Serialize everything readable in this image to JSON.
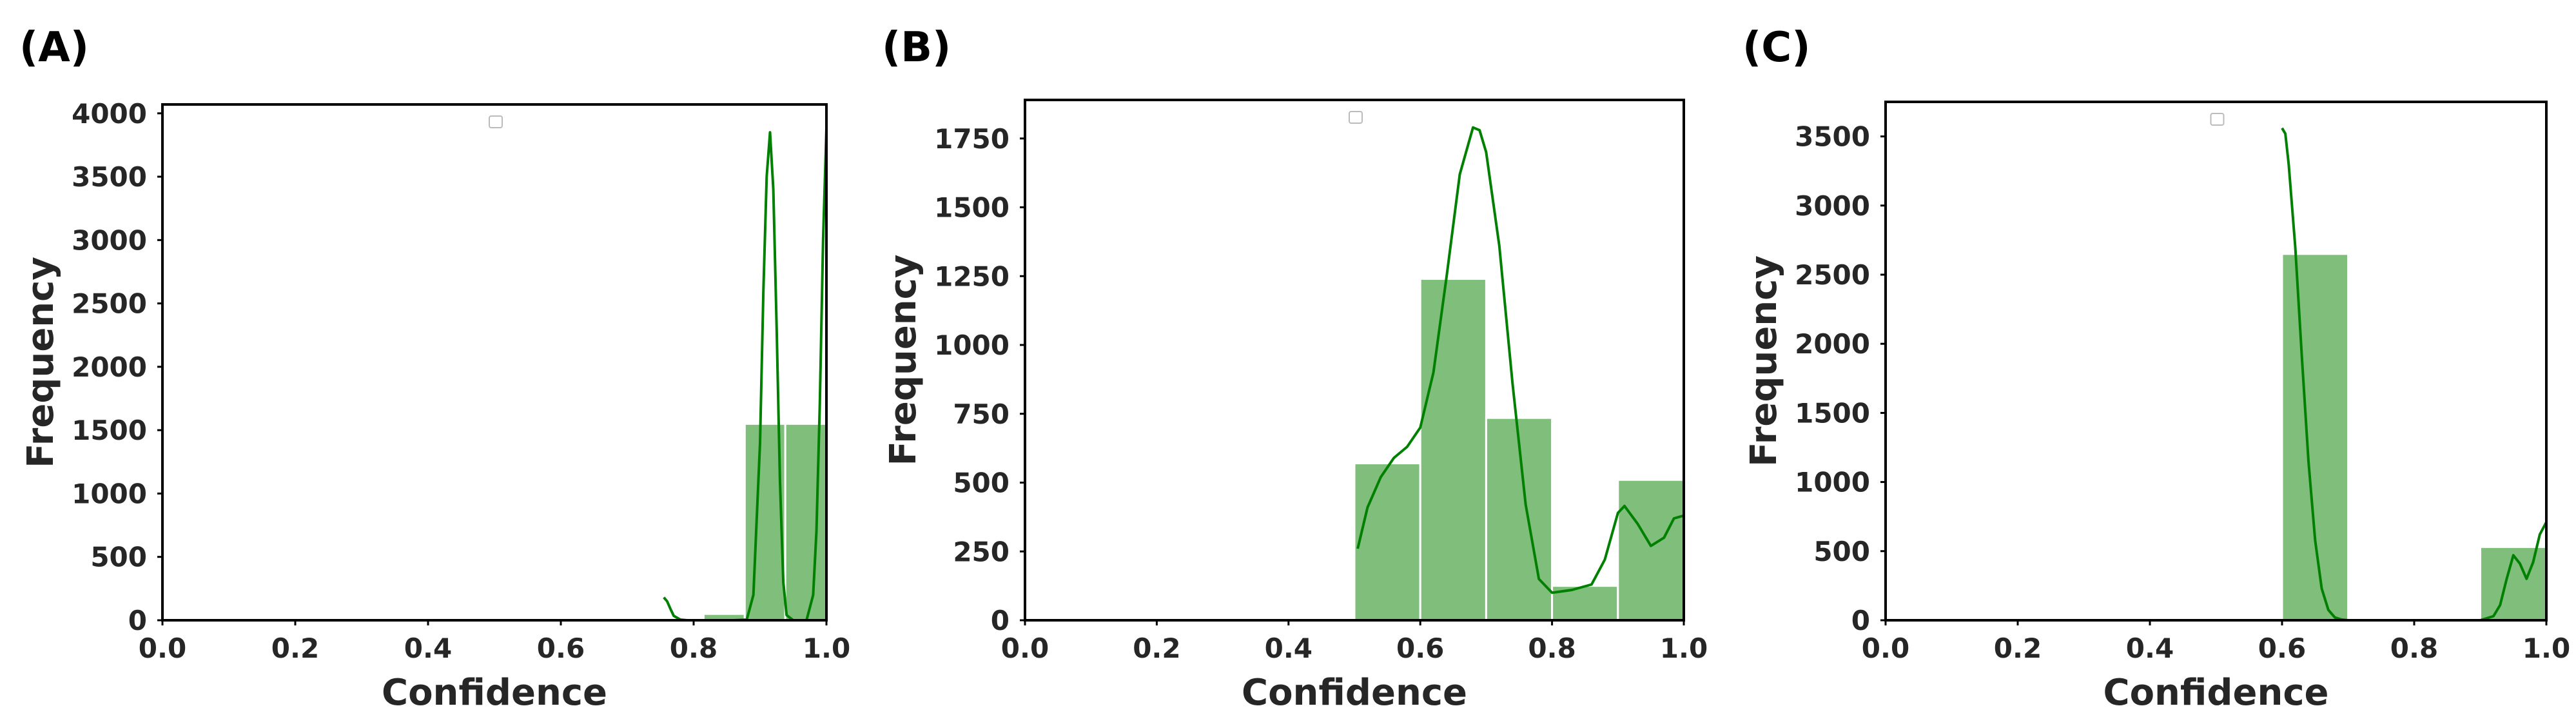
{
  "chart_data": [
    {
      "panel": "(A)",
      "type": "bar",
      "subtype": "histogram-with-kde",
      "xlabel": "Confidence",
      "ylabel": "Frequency",
      "xlim": [
        0.0,
        1.0
      ],
      "ylim": [
        0,
        4070
      ],
      "xticks": [
        "0.0",
        "0.2",
        "0.4",
        "0.6",
        "0.8",
        "1.0"
      ],
      "yticks": [
        "0",
        "500",
        "1000",
        "1500",
        "2000",
        "2500",
        "3000",
        "3500",
        "4000"
      ],
      "grid": false,
      "legend": "empty, upper center",
      "bar_color": "#7fbf7b",
      "kde_color": "#008000",
      "bins": [
        {
          "x0": 0.755,
          "x1": 0.815,
          "value": 0
        },
        {
          "x0": 0.815,
          "x1": 0.877,
          "value": 50
        },
        {
          "x0": 0.877,
          "x1": 0.938,
          "value": 1550
        },
        {
          "x0": 0.938,
          "x1": 1.0,
          "value": 1550
        }
      ],
      "kde": {
        "x": [
          0.755,
          0.76,
          0.765,
          0.77,
          0.78,
          0.79,
          0.8,
          0.82,
          0.84,
          0.86,
          0.88,
          0.89,
          0.9,
          0.905,
          0.91,
          0.915,
          0.92,
          0.925,
          0.93,
          0.935,
          0.94,
          0.95,
          0.96,
          0.97,
          0.98,
          0.985,
          0.99,
          0.995,
          1.0
        ],
        "y": [
          180,
          150,
          90,
          35,
          5,
          0,
          0,
          0,
          0,
          0,
          5,
          200,
          1400,
          2600,
          3500,
          3850,
          3400,
          2300,
          1100,
          300,
          40,
          0,
          0,
          0,
          200,
          700,
          1700,
          3000,
          3880
        ]
      }
    },
    {
      "panel": "(B)",
      "type": "bar",
      "subtype": "histogram-with-kde",
      "xlabel": "Confidence",
      "ylabel": "Frequency",
      "xlim": [
        0.0,
        1.0
      ],
      "ylim": [
        0,
        1890
      ],
      "xticks": [
        "0.0",
        "0.2",
        "0.4",
        "0.6",
        "0.8",
        "1.0"
      ],
      "yticks": [
        "0",
        "250",
        "500",
        "750",
        "1000",
        "1250",
        "1500",
        "1750"
      ],
      "grid": false,
      "legend": "empty, upper center",
      "bar_color": "#7fbf7b",
      "kde_color": "#008000",
      "bins": [
        {
          "x0": 0.5,
          "x1": 0.6,
          "value": 570
        },
        {
          "x0": 0.6,
          "x1": 0.7,
          "value": 1240
        },
        {
          "x0": 0.7,
          "x1": 0.8,
          "value": 735
        },
        {
          "x0": 0.8,
          "x1": 0.9,
          "value": 125
        },
        {
          "x0": 0.9,
          "x1": 1.0,
          "value": 510
        }
      ],
      "kde": {
        "x": [
          0.505,
          0.52,
          0.54,
          0.56,
          0.58,
          0.6,
          0.62,
          0.64,
          0.66,
          0.68,
          0.69,
          0.7,
          0.72,
          0.74,
          0.76,
          0.78,
          0.8,
          0.83,
          0.86,
          0.88,
          0.9,
          0.91,
          0.93,
          0.95,
          0.97,
          0.985,
          1.0
        ],
        "y": [
          260,
          410,
          520,
          590,
          630,
          700,
          900,
          1250,
          1620,
          1790,
          1780,
          1700,
          1360,
          860,
          420,
          150,
          100,
          110,
          130,
          220,
          390,
          415,
          350,
          270,
          300,
          370,
          380
        ]
      }
    },
    {
      "panel": "(C)",
      "type": "bar",
      "subtype": "histogram-with-kde",
      "xlabel": "Confidence",
      "ylabel": "Frequency",
      "xlim": [
        0.0,
        1.0
      ],
      "ylim": [
        0,
        3750
      ],
      "xticks": [
        "0.0",
        "0.2",
        "0.4",
        "0.6",
        "0.8",
        "1.0"
      ],
      "yticks": [
        "0",
        "500",
        "1000",
        "1500",
        "2000",
        "2500",
        "3000",
        "3500"
      ],
      "grid": false,
      "legend": "empty, upper center",
      "bar_color": "#7fbf7b",
      "kde_color": "#008000",
      "bins": [
        {
          "x0": 0.6,
          "x1": 0.7,
          "value": 2650
        },
        {
          "x0": 0.7,
          "x1": 0.8,
          "value": 0
        },
        {
          "x0": 0.8,
          "x1": 0.9,
          "value": 0
        },
        {
          "x0": 0.9,
          "x1": 1.0,
          "value": 530
        }
      ],
      "kde": {
        "x": [
          0.6,
          0.605,
          0.61,
          0.62,
          0.63,
          0.64,
          0.65,
          0.66,
          0.67,
          0.68,
          0.69,
          0.7,
          0.72,
          0.75,
          0.8,
          0.85,
          0.9,
          0.92,
          0.93,
          0.94,
          0.95,
          0.96,
          0.97,
          0.98,
          0.99,
          1.0
        ],
        "y": [
          3560,
          3520,
          3300,
          2700,
          1900,
          1150,
          580,
          230,
          75,
          20,
          5,
          0,
          0,
          0,
          0,
          0,
          0,
          30,
          110,
          300,
          470,
          410,
          300,
          420,
          620,
          710
        ]
      }
    }
  ]
}
